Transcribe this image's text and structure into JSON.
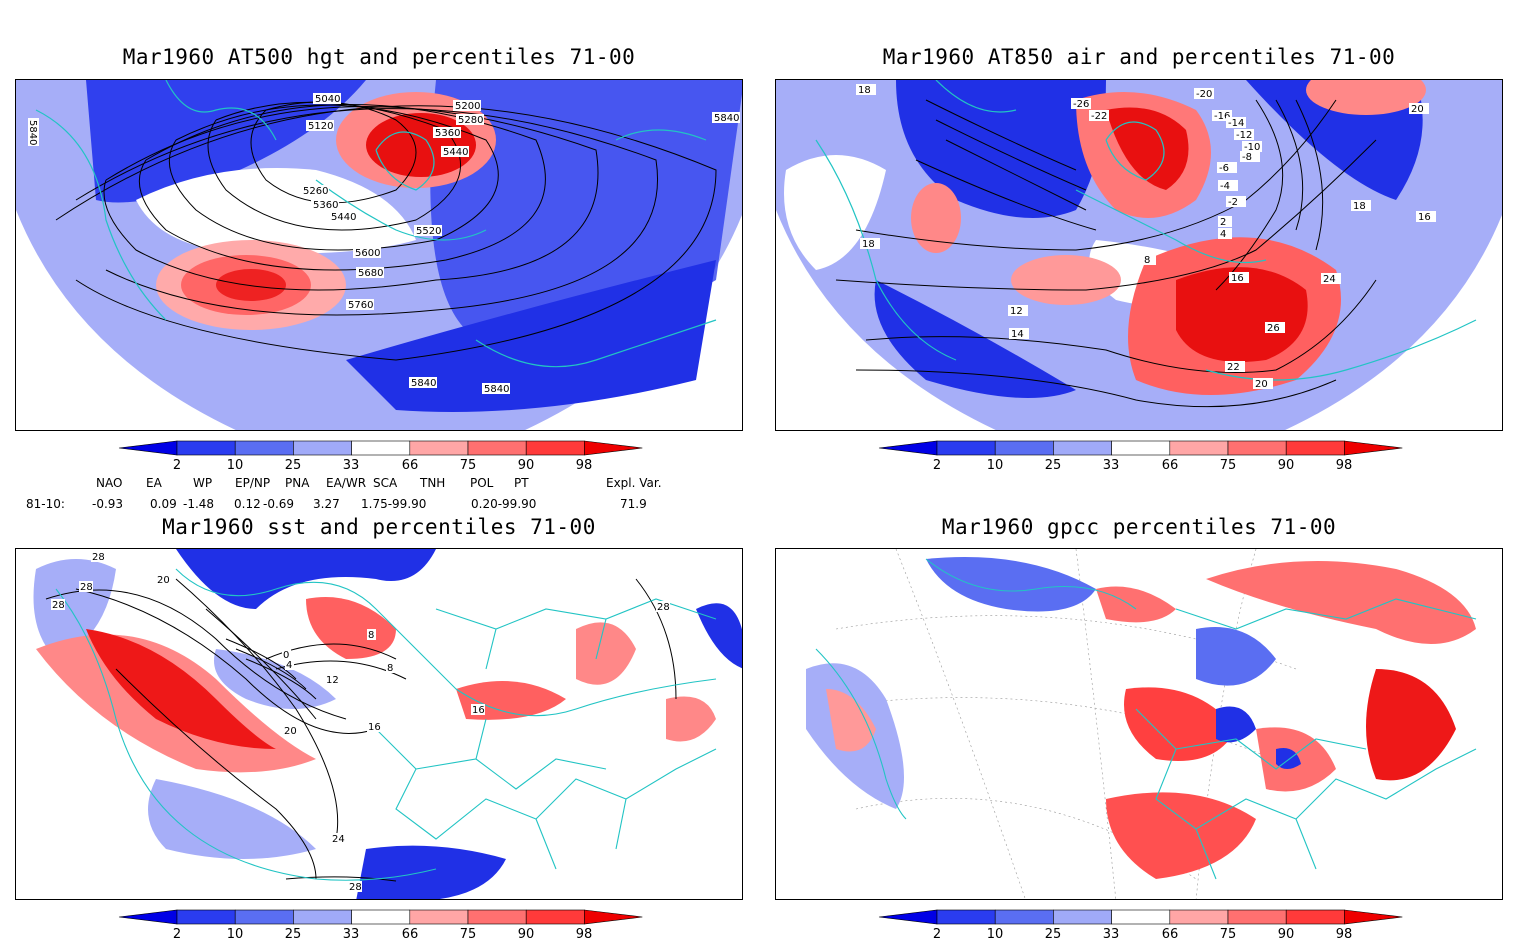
{
  "panels": [
    {
      "id": "hgt500",
      "title": "Mar1960 AT500 hgt and percentiles 71-00",
      "contour_labels": [
        "5040",
        "5120",
        "5200",
        "5280",
        "5360",
        "5440",
        "5260",
        "5360",
        "5440",
        "5520",
        "5600",
        "5680",
        "5760",
        "5840",
        "5840",
        "5840",
        "5840"
      ]
    },
    {
      "id": "air850",
      "title": "Mar1960 AT850 air and percentiles 71-00",
      "contour_labels": [
        "-20",
        "-26",
        "-22",
        "-16",
        "-14",
        "-12",
        "-10",
        "-8",
        "-6",
        "-4",
        "-2",
        "2",
        "4",
        "8",
        "12",
        "14",
        "16",
        "18",
        "20",
        "22",
        "24",
        "26",
        "16",
        "18",
        "20",
        "18"
      ]
    },
    {
      "id": "sst",
      "title": "Mar1960 sst and percentiles 71-00",
      "contour_labels": [
        "28",
        "28",
        "28",
        "20",
        "0",
        "4",
        "8",
        "12",
        "16",
        "20",
        "24",
        "28",
        "16",
        "8",
        "28"
      ]
    },
    {
      "id": "gpcc",
      "title": "Mar1960 gpcc percentiles 71-00",
      "contour_labels": []
    }
  ],
  "legend": {
    "ticks": [
      "2",
      "10",
      "25",
      "33",
      "66",
      "75",
      "90",
      "98"
    ],
    "colors": [
      "#0000e6",
      "#2a3cf0",
      "#5a6ef2",
      "#a0aaf8",
      "#ffffff",
      "#ffa6a6",
      "#ff7070",
      "#ff3a3a",
      "#ee0000"
    ]
  },
  "indices": {
    "headers": [
      "NAO",
      "EA",
      "WP",
      "EP/NP",
      "PNA",
      "EA/WR",
      "SCA",
      "TNH",
      "POL",
      "PT",
      "Expl. Var."
    ],
    "row_label": "81-10:",
    "values": [
      "-0.93",
      "0.09",
      "-1.48",
      "0.12",
      "-0.69",
      "3.27",
      "1.75-99.90",
      "0.20-99.90",
      "71.9"
    ]
  },
  "colors": {
    "coast": "#22c4c4",
    "contour": "#000000"
  }
}
